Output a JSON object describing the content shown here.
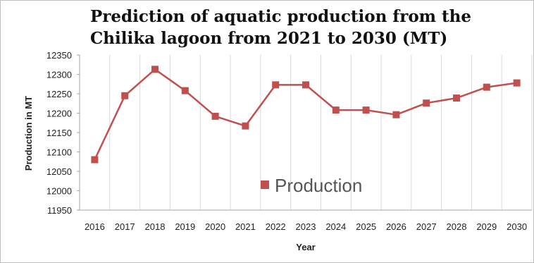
{
  "chart_data": {
    "type": "line",
    "title": "Prediction of aquatic production from the Chilika lagoon from 2021 to 2030 (MT)",
    "xlabel": "Year",
    "ylabel": "Production in MT",
    "x": [
      "2016",
      "2017",
      "2018",
      "2019",
      "2020",
      "2021",
      "2022",
      "2023",
      "2024",
      "2025",
      "2026",
      "2027",
      "2028",
      "2029",
      "2030"
    ],
    "yticks": [
      "11950",
      "12000",
      "12050",
      "12100",
      "12150",
      "12200",
      "12250",
      "12300",
      "12350"
    ],
    "ylim": [
      11950,
      12350
    ],
    "series": [
      {
        "name": "Production",
        "color": "#c0504d",
        "marker": "square",
        "values": [
          12080,
          12245,
          12313,
          12258,
          12192,
          12167,
          12273,
          12273,
          12208,
          12208,
          12196,
          12226,
          12239,
          12267,
          12278
        ]
      }
    ],
    "grid": {
      "vertical": true,
      "horizontal": false
    },
    "legend_position": "center-bottom"
  }
}
